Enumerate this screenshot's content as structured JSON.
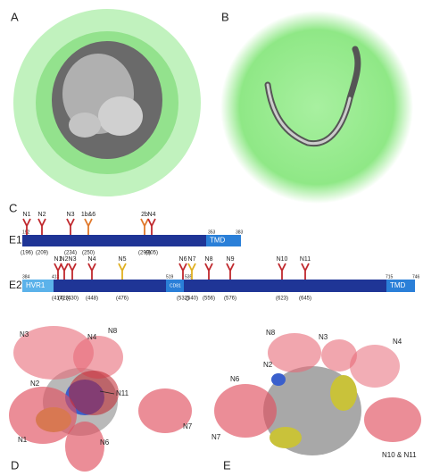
{
  "panel_a": {
    "label": "A"
  },
  "panel_b": {
    "label": "B"
  },
  "panel_c": {
    "label": "C",
    "e1": {
      "name": "E1",
      "numbers": [
        "192",
        "353",
        "383"
      ],
      "domains": [
        "TMD"
      ],
      "glycans": [
        {
          "label": "N1",
          "position": "(196)",
          "color": "#c0282d"
        },
        {
          "label": "N2",
          "position": "(209)",
          "color": "#c0282d"
        },
        {
          "label": "N3",
          "position": "(234)",
          "color": "#c0282d"
        },
        {
          "label": "1b&6",
          "position": "(250)",
          "color": "#e0782a"
        },
        {
          "label": "2b",
          "position": "(299)",
          "color": "#e0782a"
        },
        {
          "label": "N4",
          "position": "(305)",
          "color": "#c0282d"
        }
      ]
    },
    "e2": {
      "name": "E2",
      "numbers": [
        "384",
        "413",
        "519",
        "535",
        "715",
        "746"
      ],
      "domains": [
        "HVR1",
        "CD81",
        "TMD"
      ],
      "glycans": [
        {
          "label": "N1",
          "position": "(417)",
          "color": "#c0282d"
        },
        {
          "label": "N2",
          "position": "(423)",
          "color": "#c0282d"
        },
        {
          "label": "N3",
          "position": "(430)",
          "color": "#c0282d"
        },
        {
          "label": "N4",
          "position": "(448)",
          "color": "#c0282d"
        },
        {
          "label": "N5",
          "position": "(476)",
          "color": "#e0b020"
        },
        {
          "label": "N6",
          "position": "(532)",
          "color": "#c0282d"
        },
        {
          "label": "N7",
          "position": "(540)",
          "color": "#e0b020"
        },
        {
          "label": "N8",
          "position": "(556)",
          "color": "#c0282d"
        },
        {
          "label": "N9",
          "position": "(576)",
          "color": "#c0282d"
        },
        {
          "label": "N10",
          "position": "(623)",
          "color": "#c0282d"
        },
        {
          "label": "N11",
          "position": "(645)",
          "color": "#c0282d"
        }
      ]
    }
  },
  "panel_d": {
    "label": "D",
    "sites": [
      "N3",
      "N4",
      "N8",
      "N11",
      "N2",
      "N1",
      "N6",
      "N7"
    ]
  },
  "panel_e": {
    "label": "E",
    "sites": [
      "N8",
      "N3",
      "N4",
      "N2",
      "N6",
      "N7",
      "N10 & N11"
    ]
  }
}
